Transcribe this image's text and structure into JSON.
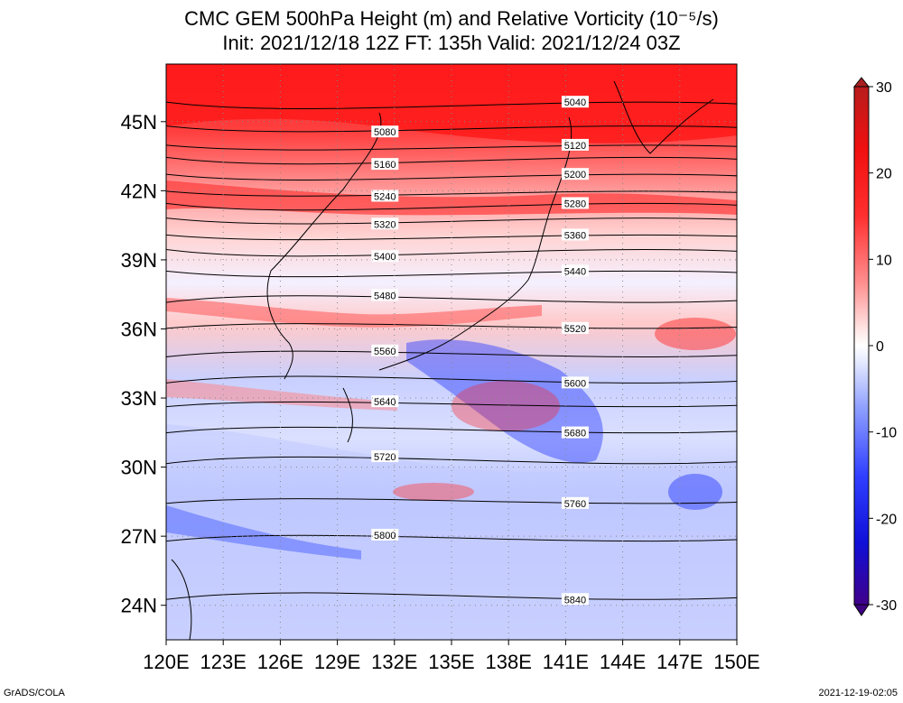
{
  "title": {
    "line1": "CMC GEM 500hPa Height (m) and Relative Vorticity (10⁻⁵/s)",
    "line2": "Init: 2021/12/18 12Z  FT: 135h  Valid: 2021/12/24 03Z"
  },
  "footer": {
    "left": "GrADS/COLA",
    "right": "2021-12-19-02:05"
  },
  "axes": {
    "lon_range": [
      120,
      150
    ],
    "lat_range": [
      22.5,
      47.5
    ],
    "lon_ticks": [
      "120E",
      "123E",
      "126E",
      "129E",
      "132E",
      "135E",
      "138E",
      "141E",
      "144E",
      "147E",
      "150E"
    ],
    "lat_ticks": [
      "24N",
      "27N",
      "30N",
      "33N",
      "36N",
      "39N",
      "42N",
      "45N"
    ],
    "lat_tick_values": [
      24,
      27,
      30,
      33,
      36,
      39,
      42,
      45
    ]
  },
  "colorbar": {
    "labels": [
      "30",
      "20",
      "10",
      "0",
      "-10",
      "-20",
      "-30"
    ],
    "values": [
      30,
      20,
      10,
      0,
      -10,
      -20,
      -30
    ],
    "colors": {
      "max": "#a01010",
      "pos": "#ff0000",
      "light_pos": "#ffd0d0",
      "zero": "#ffffff",
      "light_neg": "#d0d8ff",
      "neg": "#0000ff",
      "min": "#3a0080"
    }
  },
  "contours": [
    {
      "label": "5040",
      "lat": 45.6
    },
    {
      "label": "5080",
      "lat": 44.6
    },
    {
      "label": "5120",
      "lat": 43.8
    },
    {
      "label": "5160",
      "lat": 43.2
    },
    {
      "label": "5200",
      "lat": 42.5
    },
    {
      "label": "5240",
      "lat": 41.8
    },
    {
      "label": "5280",
      "lat": 41.2
    },
    {
      "label": "5320",
      "lat": 40.6
    },
    {
      "label": "5360",
      "lat": 39.9
    },
    {
      "label": "5400",
      "lat": 39.2
    },
    {
      "label": "5440",
      "lat": 38.3
    },
    {
      "label": "5480",
      "lat": 37.4
    },
    {
      "label": "5520",
      "lat": 36.2
    },
    {
      "label": "5560",
      "lat": 35.0
    },
    {
      "label": "5600",
      "lat": 33.9
    },
    {
      "label": "5640",
      "lat": 32.8
    },
    {
      "label": "5680",
      "lat": 31.7
    },
    {
      "label": "5720",
      "lat": 30.4
    },
    {
      "label": "5760",
      "lat": 28.6
    },
    {
      "label": "5800",
      "lat": 27.0
    },
    {
      "label": "5840",
      "lat": 24.5
    }
  ]
}
